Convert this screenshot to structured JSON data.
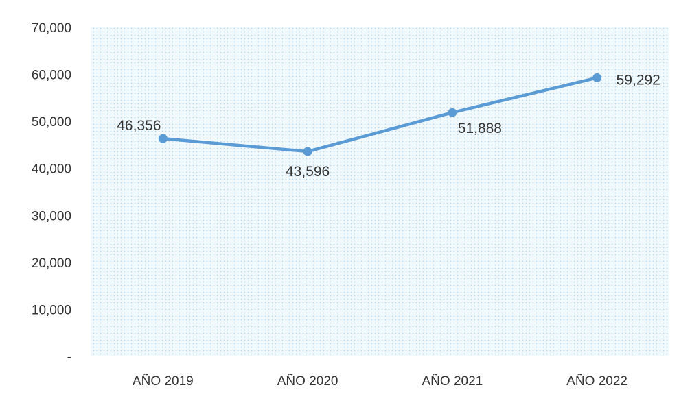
{
  "chart_data": {
    "type": "line",
    "categories": [
      "AÑO 2019",
      "AÑO 2020",
      "AÑO 2021",
      "AÑO 2022"
    ],
    "series": [
      {
        "values": [
          46356,
          43596,
          51888,
          59292
        ],
        "data_labels": [
          "46,356",
          "43,596",
          "51,888",
          "59,292"
        ],
        "color": "#5B9BD5"
      }
    ],
    "y_ticks": [
      {
        "value": 0,
        "label": "-"
      },
      {
        "value": 10000,
        "label": "10,000"
      },
      {
        "value": 20000,
        "label": "20,000"
      },
      {
        "value": 30000,
        "label": "30,000"
      },
      {
        "value": 40000,
        "label": "40,000"
      },
      {
        "value": 50000,
        "label": "50,000"
      },
      {
        "value": 60000,
        "label": "60,000"
      },
      {
        "value": 70000,
        "label": "70,000"
      }
    ],
    "ylim": [
      0,
      70000
    ],
    "title": "",
    "xlabel": "",
    "ylabel": "",
    "grid": false,
    "legend": "none",
    "plot_background": "dotted-light-blue"
  }
}
